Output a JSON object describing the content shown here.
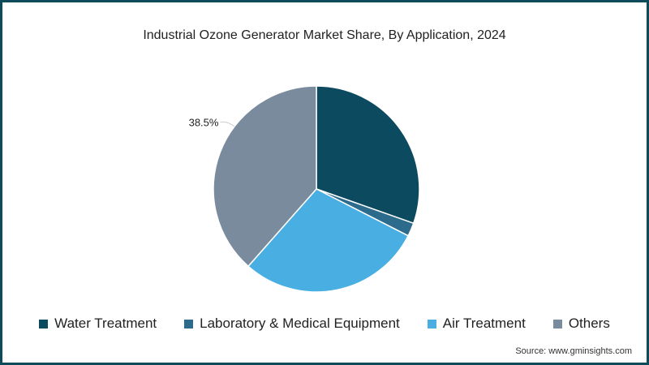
{
  "chart_data": {
    "type": "pie",
    "title": "Industrial Ozone Generator Market Share, By Application, 2024",
    "series": [
      {
        "name": "Water Treatment",
        "value": 30.4,
        "color": "#0c4a5f",
        "label": ""
      },
      {
        "name": "Laboratory & Medical Equipment",
        "value": 2.1,
        "color": "#2d6b8c",
        "label": ""
      },
      {
        "name": "Air Treatment",
        "value": 29.0,
        "color": "#49aee1",
        "label": ""
      },
      {
        "name": "Others",
        "value": 38.5,
        "color": "#7a8b9d",
        "label": "38.5%"
      }
    ],
    "start_angle_deg": 0,
    "direction": "clockwise",
    "legend_position": "bottom"
  },
  "source": "Source: www.gminsights.com"
}
